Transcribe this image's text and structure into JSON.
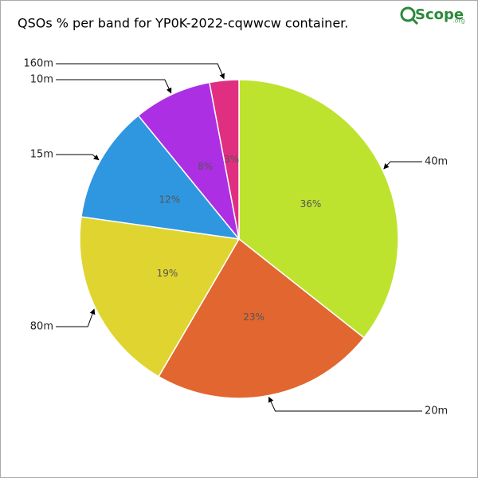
{
  "chart_data": {
    "type": "pie",
    "title": "QSOs % per band for YP0K-2022-cqwwcw container.",
    "logo_text": "Scope",
    "logo_suffix": ".org",
    "categories": [
      "40m",
      "20m",
      "80m",
      "15m",
      "10m",
      "160m"
    ],
    "values": [
      36,
      23,
      19,
      12,
      8,
      3
    ],
    "value_labels": [
      "36%",
      "23%",
      "19%",
      "12%",
      "8%",
      "3%"
    ],
    "colors": [
      "#bde32f",
      "#e2662f",
      "#e0d530",
      "#2f97e0",
      "#ad2fe3",
      "#e02f80"
    ]
  }
}
